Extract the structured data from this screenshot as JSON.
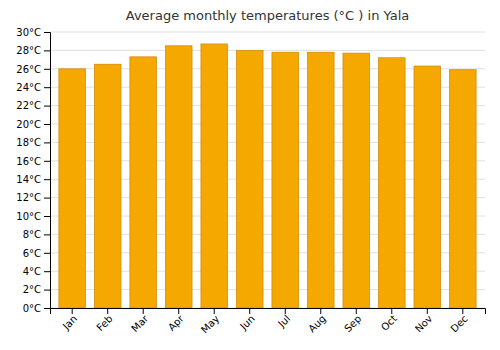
{
  "chart_data": {
    "type": "bar",
    "title": "Average monthly temperatures (°C ) in Yala",
    "categories": [
      "Jan",
      "Feb",
      "Mar",
      "Apr",
      "May",
      "Jun",
      "Jul",
      "Aug",
      "Sep",
      "Oct",
      "Nov",
      "Dec"
    ],
    "values": [
      26.0,
      26.5,
      27.3,
      28.5,
      28.7,
      28.0,
      27.8,
      27.8,
      27.7,
      27.2,
      26.3,
      25.9
    ],
    "color": "#F5A800",
    "ylim": [
      0,
      30
    ],
    "yticks": [
      {
        "value": 0,
        "label": "0°C"
      },
      {
        "value": 2,
        "label": "2°C"
      },
      {
        "value": 4,
        "label": "4°C"
      },
      {
        "value": 6,
        "label": "6°C"
      },
      {
        "value": 8,
        "label": "8°C"
      },
      {
        "value": 10,
        "label": "10°C"
      },
      {
        "value": 12,
        "label": "12°C"
      },
      {
        "value": 14,
        "label": "14°C"
      },
      {
        "value": 16,
        "label": "16°C"
      },
      {
        "value": 18,
        "label": "18°C"
      },
      {
        "value": 20,
        "label": "20°C"
      },
      {
        "value": 22,
        "label": "22°C"
      },
      {
        "value": 24,
        "label": "24°C"
      },
      {
        "value": 26,
        "label": "26°C"
      },
      {
        "value": 28,
        "label": "28°C"
      },
      {
        "value": 30,
        "label": "30°C"
      }
    ],
    "grid": true
  }
}
